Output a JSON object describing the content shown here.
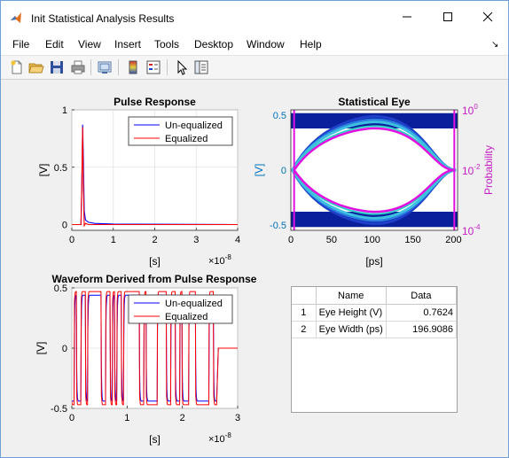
{
  "window": {
    "title": "Init Statistical Analysis Results",
    "app_icon": "matlab-icon",
    "controls": [
      "minimize-icon",
      "maximize-icon",
      "close-icon"
    ]
  },
  "menubar": {
    "items": [
      "File",
      "Edit",
      "View",
      "Insert",
      "Tools",
      "Desktop",
      "Window",
      "Help"
    ],
    "dock_icon": "dock-arrow-icon"
  },
  "toolbar": {
    "buttons": [
      "new-figure-icon",
      "open-file-icon",
      "save-icon",
      "print-icon",
      "link-plot-icon",
      "insert-colorbar-icon",
      "insert-legend-icon",
      "edit-plot-icon",
      "property-inspector-icon"
    ]
  },
  "colors": {
    "unequalized": "#0000ff",
    "equalized": "#ff0000",
    "left_axis": "#0072bd",
    "right_axis": "#c41ec4"
  },
  "chart_data": [
    {
      "type": "line",
      "title": "Pulse Response",
      "xlabel": "[s]",
      "ylabel": "[V]",
      "x_multiplier": "×10",
      "x_exponent": "-8",
      "xlim": [
        0,
        4
      ],
      "ylim": [
        -0.05,
        1
      ],
      "xticks": [
        "0",
        "1",
        "2",
        "3",
        "4"
      ],
      "yticks": [
        "0",
        "0.5",
        "1"
      ],
      "xtick_values": [
        0,
        1,
        2,
        3,
        4
      ],
      "ytick_values": [
        0,
        0.5,
        1
      ],
      "grid": true,
      "legend": "top-right",
      "series": [
        {
          "name": "Un-equalized",
          "color": "#0000ff",
          "points": [
            [
              0,
              0
            ],
            [
              0.22,
              0
            ],
            [
              0.24,
              0.3
            ],
            [
              0.26,
              0.87
            ],
            [
              0.28,
              0.55
            ],
            [
              0.3,
              0.12
            ],
            [
              0.33,
              0.04
            ],
            [
              0.4,
              0.02
            ],
            [
              0.55,
              0.01
            ],
            [
              1,
              0.005
            ],
            [
              4,
              0
            ]
          ]
        },
        {
          "name": "Equalized",
          "color": "#ff0000",
          "points": [
            [
              0,
              0
            ],
            [
              0.22,
              0
            ],
            [
              0.24,
              0.35
            ],
            [
              0.26,
              0.85
            ],
            [
              0.28,
              0.3
            ],
            [
              0.3,
              -0.01
            ],
            [
              0.33,
              0.01
            ],
            [
              0.4,
              0
            ],
            [
              4,
              0
            ]
          ]
        }
      ]
    },
    {
      "type": "heatmap",
      "title": "Statistical Eye",
      "xlabel": "[ps]",
      "ylabel": "[V]",
      "y2label": "Probability",
      "xlim": [
        0,
        205
      ],
      "ylim": [
        -0.55,
        0.55
      ],
      "xticks": [
        "0",
        "50",
        "100",
        "150",
        "200"
      ],
      "xtick_values": [
        0,
        50,
        100,
        150,
        200
      ],
      "yticks": [
        "-0.5",
        "0",
        "0.5"
      ],
      "ytick_values": [
        -0.5,
        0,
        0.5
      ],
      "y2ticks": [
        {
          "base": "10",
          "exp": "0"
        },
        {
          "base": "10",
          "exp": "-2"
        },
        {
          "base": "10",
          "exp": "-4"
        }
      ],
      "y2lim_log10": [
        -4,
        0
      ],
      "y2tick_values_log10": [
        0,
        -2,
        -4
      ],
      "eye_height_v": 0.7624,
      "eye_width_ps": 196.9086
    },
    {
      "type": "line",
      "title": "Waveform Derived from Pulse Response",
      "xlabel": "[s]",
      "ylabel": "[V]",
      "x_multiplier": "×10",
      "x_exponent": "-8",
      "xlim": [
        0,
        3
      ],
      "ylim": [
        -0.5,
        0.5
      ],
      "xticks": [
        "0",
        "1",
        "2",
        "3"
      ],
      "yticks": [
        "-0.5",
        "0",
        "0.5"
      ],
      "xtick_values": [
        0,
        1,
        2,
        3
      ],
      "ytick_values": [
        -0.5,
        0,
        0.5
      ],
      "grid": true,
      "legend": "top-right",
      "signal_end": 2.6,
      "series": [
        {
          "name": "Un-equalized",
          "color": "#0000ff"
        },
        {
          "name": "Equalized",
          "color": "#ff0000"
        }
      ]
    }
  ],
  "table": {
    "columns": [
      "Name",
      "Data"
    ],
    "rows": [
      {
        "num": "1",
        "name": "Eye Height (V)",
        "data": "0.7624"
      },
      {
        "num": "2",
        "name": "Eye Width (ps)",
        "data": "196.9086"
      }
    ]
  }
}
